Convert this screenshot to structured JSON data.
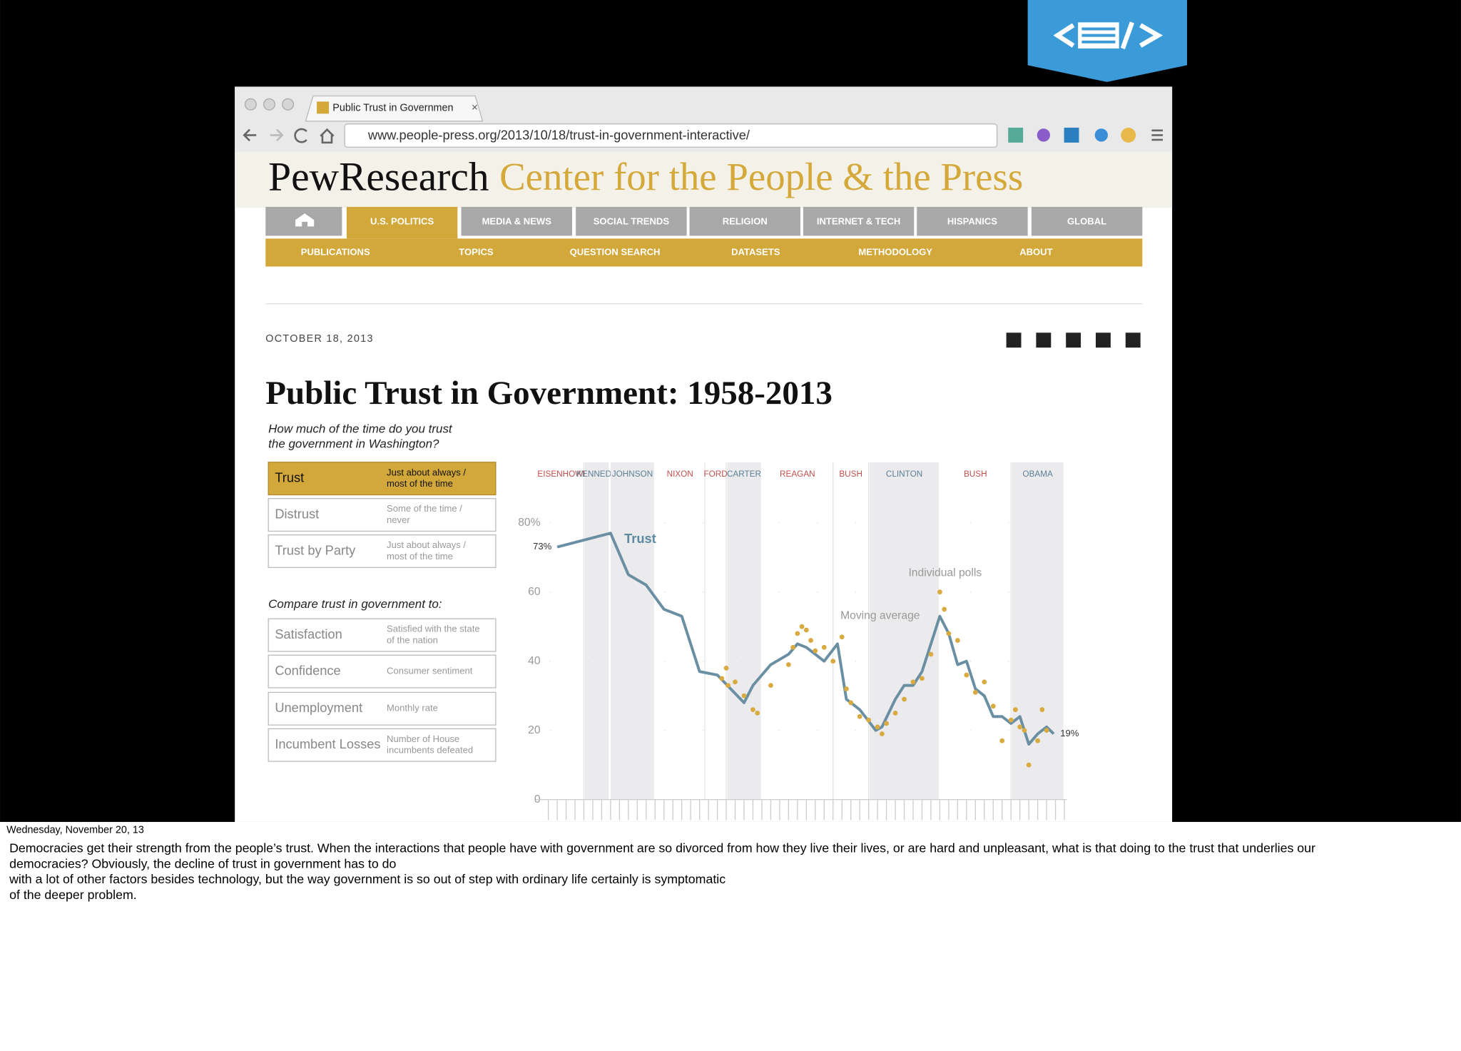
{
  "browser": {
    "tab_title": "Public Trust in Governmen",
    "url": "www.people-press.org/2013/10/18/trust-in-government-interactive/"
  },
  "site": {
    "logo": "PewResearch",
    "tagline": "Center for the People & the Press",
    "nav": [
      "U.S. POLITICS",
      "MEDIA & NEWS",
      "SOCIAL TRENDS",
      "RELIGION",
      "INTERNET & TECH",
      "HISPANICS",
      "GLOBAL"
    ],
    "subnav": [
      "PUBLICATIONS",
      "TOPICS",
      "QUESTION SEARCH",
      "DATASETS",
      "METHODOLOGY",
      "ABOUT"
    ]
  },
  "article": {
    "date": "OCTOBER 18, 2013",
    "title": "Public Trust in Government: 1958-2013",
    "question": [
      "How much of the time do you trust",
      "the government in Washington?"
    ],
    "measures": [
      {
        "name": "Trust",
        "desc": [
          "Just about always /",
          "most of the time"
        ]
      },
      {
        "name": "Distrust",
        "desc": [
          "Some of the time /",
          "never"
        ]
      },
      {
        "name": "Trust by Party",
        "desc": [
          "Just about always /",
          "most of the time"
        ]
      }
    ],
    "compare_heading": "Compare trust in government to:",
    "compare": [
      {
        "name": "Satisfaction",
        "desc": [
          "Satisfied with the state",
          "of the nation"
        ]
      },
      {
        "name": "Confidence",
        "desc": [
          "Consumer sentiment"
        ]
      },
      {
        "name": "Unemployment",
        "desc": [
          "Monthly rate"
        ]
      },
      {
        "name": "Incumbent Losses",
        "desc": [
          "Number of House",
          "incumbents defeated"
        ]
      }
    ]
  },
  "chart_data": {
    "type": "line",
    "annotation": "Trust",
    "xlim": [
      1957,
      2015
    ],
    "ylim": [
      0,
      80
    ],
    "yticks": [
      0,
      20,
      40,
      60,
      {
        "value": 80,
        "label": "80%"
      }
    ],
    "presidents": [
      {
        "name": "EISENHOWER",
        "start": 1957,
        "color": "#c0504d"
      },
      {
        "name": "KENNEDY",
        "start": 1961,
        "color": "#5b7f95",
        "shaded": true
      },
      {
        "name": "JOHNSON",
        "start": 1963.9,
        "color": "#5b7f95",
        "shaded": true
      },
      {
        "name": "NIXON",
        "start": 1969,
        "color": "#c0504d"
      },
      {
        "name": "FORD",
        "start": 1974.6,
        "color": "#c0504d"
      },
      {
        "name": "CARTER",
        "start": 1977,
        "color": "#5b7f95",
        "shaded": true
      },
      {
        "name": "REAGAN",
        "start": 1981,
        "color": "#c0504d"
      },
      {
        "name": "BUSH",
        "start": 1989,
        "color": "#c0504d"
      },
      {
        "name": "CLINTON",
        "start": 1993,
        "color": "#5b7f95",
        "shaded": true
      },
      {
        "name": "BUSH",
        "start": 2001,
        "color": "#c0504d"
      },
      {
        "name": "OBAMA",
        "start": 2009,
        "color": "#5b7f95",
        "shaded": true
      }
    ],
    "series": [
      {
        "name": "Moving average",
        "color": "#6a8fa3",
        "x": [
          1958,
          1964,
          1966,
          1968,
          1970,
          1972,
          1974,
          1976,
          1977.5,
          1979,
          1980,
          1982,
          1984,
          1985,
          1986,
          1987,
          1988,
          1989.5,
          1990.5,
          1992,
          1993.8,
          1994.5,
          1996,
          1997,
          1998,
          1999,
          2000,
          2001,
          2002,
          2003,
          2004,
          2005,
          2006,
          2007,
          2008,
          2009,
          2010,
          2011,
          2012,
          2013,
          2013.8
        ],
        "values": [
          73,
          77,
          65,
          62,
          55,
          53,
          37,
          36,
          32,
          28,
          33,
          39,
          42,
          45,
          44,
          42,
          40,
          45,
          29,
          26,
          20,
          21,
          29,
          33,
          33,
          37,
          45,
          53,
          48,
          39,
          40,
          32,
          30,
          24,
          24,
          22,
          24,
          16,
          19,
          21,
          19
        ],
        "value_labels": [
          "73%",
          null,
          null,
          null,
          null,
          null,
          null,
          null,
          null,
          null,
          null,
          null,
          null,
          null,
          null,
          null,
          null,
          null,
          null,
          null,
          null,
          null,
          null,
          null,
          null,
          null,
          null,
          null,
          null,
          null,
          null,
          null,
          null,
          null,
          null,
          null,
          null,
          null,
          null,
          null,
          "19%"
        ]
      },
      {
        "name": "Individual polls",
        "color": "#d8aa3f",
        "x": [
          1976.5,
          1977,
          1977.2,
          1978,
          1979,
          1980,
          1980.5,
          1982,
          1984,
          1984.5,
          1985,
          1985.5,
          1986,
          1986.5,
          1987,
          1988,
          1989,
          1990,
          1990.5,
          1991,
          1992,
          1993,
          1994,
          1994.5,
          1995,
          1996,
          1997,
          1998,
          1999,
          2000,
          2001,
          2001.5,
          2002,
          2003,
          2004,
          2005,
          2006,
          2007,
          2008,
          2009,
          2009.5,
          2010,
          2010.5,
          2011,
          2012,
          2012.5,
          2013
        ],
        "values": [
          35,
          38,
          33,
          34,
          30,
          26,
          25,
          33,
          39,
          44,
          48,
          50,
          49,
          46,
          43,
          44,
          40,
          47,
          32,
          28,
          24,
          23,
          21,
          19,
          22,
          25,
          29,
          34,
          35,
          42,
          60,
          55,
          48,
          46,
          36,
          31,
          34,
          27,
          17,
          23,
          26,
          21,
          20,
          10,
          17,
          26,
          20
        ]
      }
    ]
  },
  "notes": {
    "date": "Wednesday, November 20, 13",
    "lines": [
      "Democracies get their strength from the people’s trust. When the interactions that people have with government are so divorced from how they live their lives, or are hard and unpleasant, what is that doing to the trust that underlies our",
      "democracies? Obviously, the decline of trust in government has to do",
      "with a lot of other factors besides technology, but the way government is so out of step with ordinary life certainly is symptomatic",
      "of the deeper problem."
    ]
  }
}
